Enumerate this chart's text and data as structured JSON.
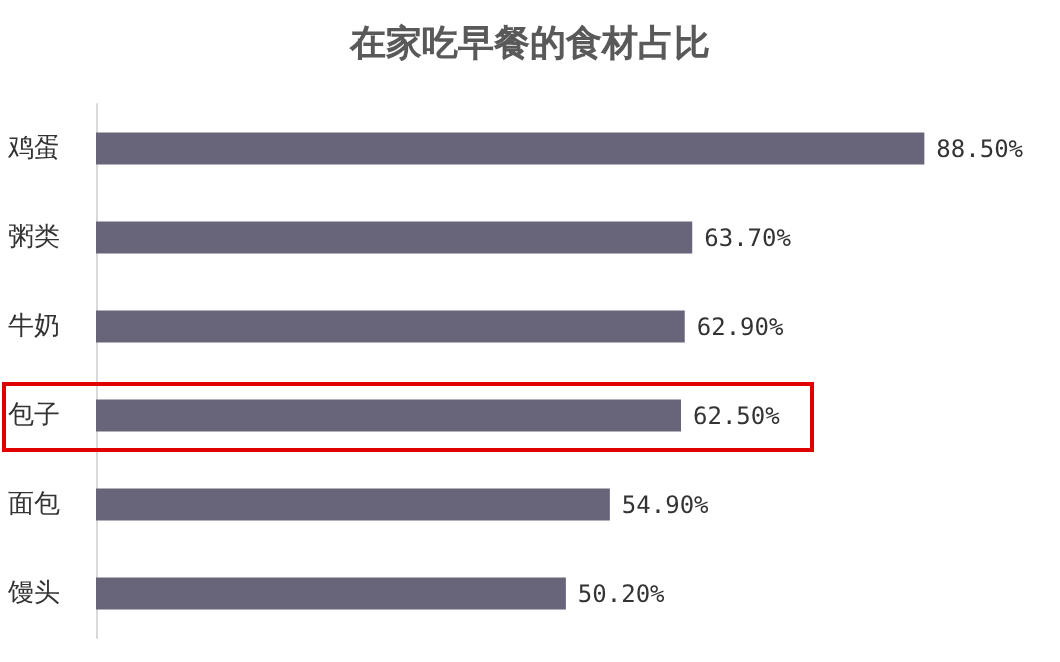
{
  "chart_data": {
    "type": "bar",
    "orientation": "horizontal",
    "title": "在家吃早餐的食材占比",
    "categories": [
      "鸡蛋",
      "粥类",
      "牛奶",
      "包子",
      "面包",
      "馒头"
    ],
    "values": [
      88.5,
      63.7,
      62.9,
      62.5,
      54.9,
      50.2
    ],
    "value_labels": [
      "88.50%",
      "63.70%",
      "62.90%",
      "62.50%",
      "54.90%",
      "50.20%"
    ],
    "color": "#68647a"
  }
}
